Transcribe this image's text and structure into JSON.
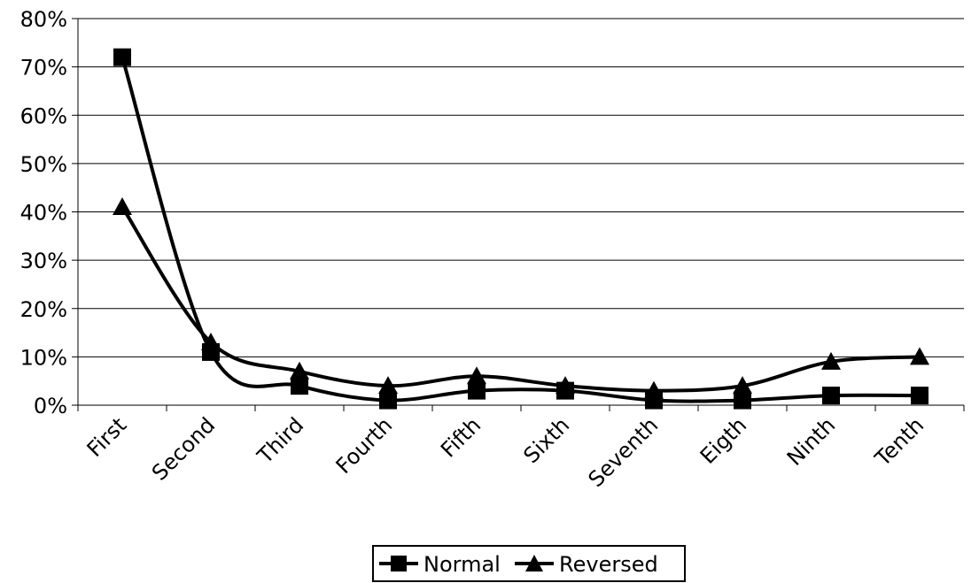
{
  "chart_data": {
    "type": "line",
    "categories": [
      "First",
      "Second",
      "Third",
      "Fourth",
      "Fifth",
      "Sixth",
      "Seventh",
      "Eigth",
      "Ninth",
      "Tenth"
    ],
    "series": [
      {
        "name": "Normal",
        "marker": "square",
        "values": [
          72,
          11,
          4,
          1,
          3,
          3,
          1,
          1,
          2,
          2
        ]
      },
      {
        "name": "Reversed",
        "marker": "triangle",
        "values": [
          41,
          13,
          7,
          4,
          6,
          4,
          3,
          4,
          9,
          10
        ]
      }
    ],
    "y_ticks": [
      "0%",
      "10%",
      "20%",
      "30%",
      "40%",
      "50%",
      "60%",
      "70%",
      "80%"
    ],
    "ylim": [
      0,
      80
    ],
    "y_unit": "%",
    "grid": "horizontal",
    "legend_position": "bottom",
    "line_color": "#000000"
  }
}
